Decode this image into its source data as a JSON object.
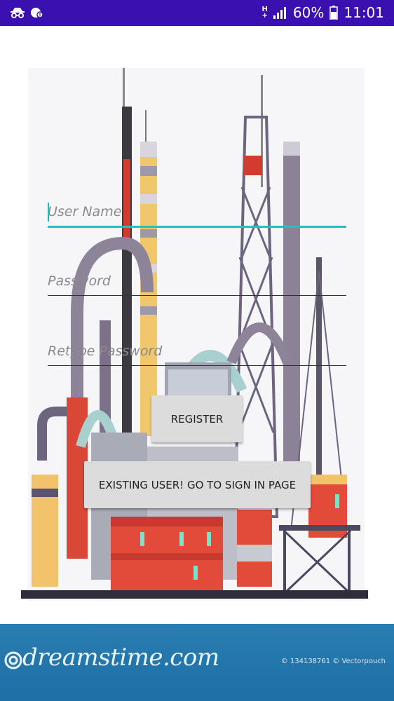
{
  "status_bar": {
    "network": "H",
    "network_sub": "+",
    "battery_percent": "60%",
    "time": "11:01",
    "icons": [
      "incognito-icon",
      "notification-icon",
      "signal-icon",
      "battery-icon"
    ]
  },
  "form": {
    "username_placeholder": "User Name",
    "password_placeholder": "Password",
    "retype_placeholder": "Retype Password",
    "register_label": "REGISTER",
    "signin_label": "EXISTING USER! GO TO SIGN IN PAGE"
  },
  "watermark": {
    "logo_text": "dreamstime.com",
    "credit": "© 134138761 © Vectorpouch"
  },
  "colors": {
    "status_bar": "#3b10b0",
    "accent": "#22c0c0",
    "button_bg": "#dcdcdc",
    "watermark_bar": "#1d6fa5"
  }
}
